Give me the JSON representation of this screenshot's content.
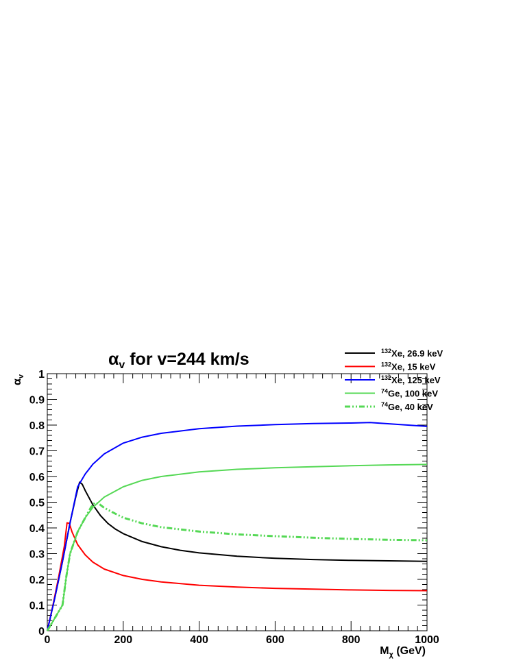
{
  "chart_data": {
    "type": "line",
    "title": "α",
    "title_sub": "v",
    "title_rest": " for v=244 km/s",
    "xlabel": "M",
    "xlabel_sub": "χ",
    "xlabel_rest": " (GeV)",
    "ylabel": "α",
    "ylabel_sub": "v",
    "xlim": [
      0,
      1000
    ],
    "ylim": [
      0,
      1
    ],
    "x_ticks": [
      0,
      200,
      400,
      600,
      800,
      1000
    ],
    "x_tick_labels": [
      "0",
      "200",
      "400",
      "600",
      "800",
      "1000"
    ],
    "y_ticks": [
      0,
      0.1,
      0.2,
      0.3,
      0.4,
      0.5,
      0.6,
      0.7,
      0.8,
      0.9,
      1
    ],
    "y_tick_labels": [
      "0",
      "0.1",
      "0.2",
      "0.3",
      "0.4",
      "0.5",
      "0.6",
      "0.7",
      "0.8",
      "0.9",
      "1"
    ],
    "grid": false,
    "legend_position": "top-right",
    "series": [
      {
        "name": "Xe, 26.9 keV",
        "isotope": "132",
        "color": "#000000",
        "dash": "solid",
        "points": [
          [
            0,
            0
          ],
          [
            20,
            0.13
          ],
          [
            40,
            0.27
          ],
          [
            60,
            0.42
          ],
          [
            75,
            0.52
          ],
          [
            85,
            0.578
          ],
          [
            92,
            0.57
          ],
          [
            100,
            0.545
          ],
          [
            120,
            0.49
          ],
          [
            140,
            0.448
          ],
          [
            160,
            0.417
          ],
          [
            180,
            0.395
          ],
          [
            200,
            0.378
          ],
          [
            250,
            0.347
          ],
          [
            300,
            0.327
          ],
          [
            350,
            0.313
          ],
          [
            400,
            0.303
          ],
          [
            500,
            0.29
          ],
          [
            600,
            0.282
          ],
          [
            700,
            0.277
          ],
          [
            800,
            0.274
          ],
          [
            900,
            0.272
          ],
          [
            1000,
            0.27
          ]
        ]
      },
      {
        "name": "Xe, 15 keV",
        "isotope": "132",
        "color": "#ff0000",
        "dash": "solid",
        "points": [
          [
            0,
            0
          ],
          [
            15,
            0.1
          ],
          [
            30,
            0.21
          ],
          [
            45,
            0.33
          ],
          [
            52,
            0.42
          ],
          [
            58,
            0.418
          ],
          [
            65,
            0.385
          ],
          [
            80,
            0.335
          ],
          [
            100,
            0.295
          ],
          [
            120,
            0.267
          ],
          [
            150,
            0.24
          ],
          [
            200,
            0.215
          ],
          [
            250,
            0.2
          ],
          [
            300,
            0.19
          ],
          [
            400,
            0.177
          ],
          [
            500,
            0.17
          ],
          [
            600,
            0.165
          ],
          [
            700,
            0.162
          ],
          [
            800,
            0.159
          ],
          [
            900,
            0.157
          ],
          [
            1000,
            0.156
          ]
        ]
      },
      {
        "name": "Xe, 125 keV",
        "isotope": "132",
        "color": "#0000ff",
        "dash": "solid",
        "points": [
          [
            0,
            0
          ],
          [
            20,
            0.13
          ],
          [
            40,
            0.27
          ],
          [
            60,
            0.42
          ],
          [
            80,
            0.56
          ],
          [
            100,
            0.61
          ],
          [
            120,
            0.648
          ],
          [
            150,
            0.688
          ],
          [
            200,
            0.73
          ],
          [
            250,
            0.753
          ],
          [
            300,
            0.768
          ],
          [
            400,
            0.786
          ],
          [
            500,
            0.796
          ],
          [
            600,
            0.802
          ],
          [
            700,
            0.806
          ],
          [
            800,
            0.808
          ],
          [
            850,
            0.81
          ],
          [
            900,
            0.805
          ],
          [
            950,
            0.8
          ],
          [
            1000,
            0.795
          ]
        ]
      },
      {
        "name": "Ge, 100 keV",
        "isotope": "74",
        "color": "#55d855",
        "dash": "solid",
        "points": [
          [
            0,
            0
          ],
          [
            20,
            0.05
          ],
          [
            40,
            0.1
          ],
          [
            50,
            0.21
          ],
          [
            60,
            0.3
          ],
          [
            80,
            0.385
          ],
          [
            100,
            0.44
          ],
          [
            120,
            0.48
          ],
          [
            150,
            0.52
          ],
          [
            200,
            0.56
          ],
          [
            250,
            0.585
          ],
          [
            300,
            0.6
          ],
          [
            400,
            0.618
          ],
          [
            500,
            0.628
          ],
          [
            600,
            0.634
          ],
          [
            700,
            0.638
          ],
          [
            800,
            0.642
          ],
          [
            900,
            0.645
          ],
          [
            1000,
            0.647
          ]
        ]
      },
      {
        "name": "Ge, 40 keV",
        "isotope": "74",
        "color": "#55d855",
        "dash": "dashdot",
        "points": [
          [
            0,
            0
          ],
          [
            20,
            0.05
          ],
          [
            40,
            0.1
          ],
          [
            50,
            0.21
          ],
          [
            60,
            0.3
          ],
          [
            80,
            0.385
          ],
          [
            100,
            0.44
          ],
          [
            115,
            0.48
          ],
          [
            125,
            0.498
          ],
          [
            135,
            0.495
          ],
          [
            150,
            0.478
          ],
          [
            180,
            0.455
          ],
          [
            200,
            0.44
          ],
          [
            250,
            0.418
          ],
          [
            300,
            0.403
          ],
          [
            400,
            0.386
          ],
          [
            500,
            0.375
          ],
          [
            600,
            0.368
          ],
          [
            700,
            0.362
          ],
          [
            800,
            0.357
          ],
          [
            900,
            0.354
          ],
          [
            1000,
            0.352
          ]
        ]
      }
    ]
  }
}
